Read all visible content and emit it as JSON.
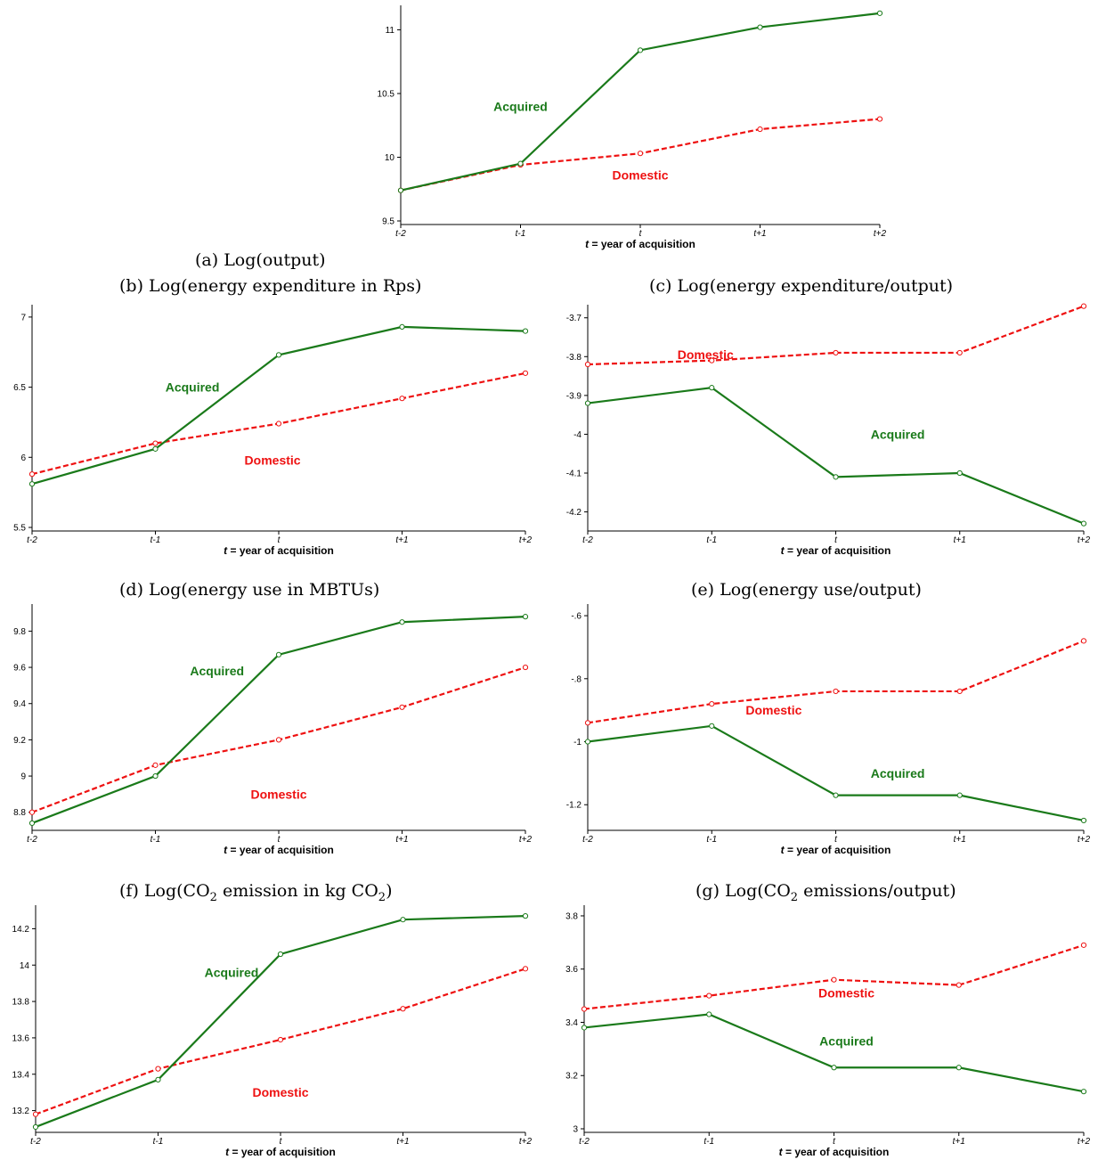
{
  "captions": {
    "a": "(a) Log(output)",
    "b": "(b) Log(energy expenditure in Rps)",
    "c": "(c) Log(energy expenditure/output)",
    "d": "(d) Log(energy use in MBTUs)",
    "e": "(e) Log(energy use/output)",
    "f_prefix": "(f) Log(CO",
    "f_mid": " emission in kg CO",
    "f_suffix": ")",
    "g_prefix": "(g) Log(CO",
    "g_suffix": " emissions/output)",
    "subscript": "2"
  },
  "colors": {
    "acquired": "#1a7a1a",
    "domestic": "#ee1111"
  },
  "chart_data": [
    {
      "id": "a",
      "type": "line",
      "categories": [
        "t-2",
        "t-1",
        "t",
        "t+1",
        "t+2"
      ],
      "xlabel_italic": "t",
      "xlabel_rest": " = year of acquisition",
      "yticks": [
        "9.5",
        "10",
        "10.5",
        "11"
      ],
      "ylim": [
        9.5,
        11.15
      ],
      "series": [
        {
          "name": "Acquired",
          "values": [
            9.74,
            9.95,
            10.84,
            11.02,
            11.13
          ],
          "style": "solid",
          "label_at": [
            1.0,
            10.4
          ]
        },
        {
          "name": "Domestic",
          "values": [
            9.74,
            9.94,
            10.03,
            10.22,
            10.3
          ],
          "style": "dashed",
          "label_at": [
            2.0,
            9.86
          ]
        }
      ]
    },
    {
      "id": "b",
      "type": "line",
      "categories": [
        "t-2",
        "t-1",
        "t",
        "t+1",
        "t+2"
      ],
      "xlabel_italic": "t",
      "xlabel_rest": " = year of acquisition",
      "yticks": [
        "5.5",
        "6",
        "6.5",
        "7"
      ],
      "ylim": [
        5.5,
        7.05
      ],
      "series": [
        {
          "name": "Acquired",
          "values": [
            5.81,
            6.06,
            6.73,
            6.93,
            6.9
          ],
          "style": "solid",
          "label_at": [
            1.3,
            6.5
          ]
        },
        {
          "name": "Domestic",
          "values": [
            5.88,
            6.1,
            6.24,
            6.42,
            6.6
          ],
          "style": "dashed",
          "label_at": [
            1.95,
            5.98
          ]
        }
      ]
    },
    {
      "id": "c",
      "type": "line",
      "categories": [
        "t-2",
        "t-1",
        "t",
        "t+1",
        "t+2"
      ],
      "xlabel_italic": "t",
      "xlabel_rest": " = year of acquisition",
      "yticks": [
        "-4.2",
        "-4.1",
        "-4",
        "-3.9",
        "-3.8",
        "-3.7"
      ],
      "ylim": [
        -4.24,
        -3.68
      ],
      "series": [
        {
          "name": "Acquired",
          "values": [
            -3.92,
            -3.88,
            -4.11,
            -4.1,
            -4.23
          ],
          "style": "solid",
          "label_at": [
            2.5,
            -4.0
          ]
        },
        {
          "name": "Domestic",
          "values": [
            -3.82,
            -3.81,
            -3.79,
            -3.79,
            -3.67
          ],
          "style": "dashed",
          "label_at": [
            0.95,
            -3.795
          ]
        }
      ]
    },
    {
      "id": "d",
      "type": "line",
      "categories": [
        "t-2",
        "t-1",
        "t",
        "t+1",
        "t+2"
      ],
      "xlabel_italic": "t",
      "xlabel_rest": " = year of acquisition",
      "yticks": [
        "8.8",
        "9",
        "9.2",
        "9.4",
        "9.6",
        "9.8"
      ],
      "ylim": [
        8.72,
        9.92
      ],
      "series": [
        {
          "name": "Acquired",
          "values": [
            8.74,
            9.0,
            9.67,
            9.85,
            9.88
          ],
          "style": "solid",
          "label_at": [
            1.5,
            9.58
          ]
        },
        {
          "name": "Domestic",
          "values": [
            8.8,
            9.06,
            9.2,
            9.38,
            9.6
          ],
          "style": "dashed",
          "label_at": [
            2.0,
            8.9
          ]
        }
      ]
    },
    {
      "id": "e",
      "type": "line",
      "categories": [
        "t-2",
        "t-1",
        "t",
        "t+1",
        "t+2"
      ],
      "xlabel_italic": "t",
      "xlabel_rest": " = year of acquisition",
      "yticks": [
        "-1.2",
        "-1",
        "-.8",
        "-.6"
      ],
      "ylim": [
        -1.27,
        -0.58
      ],
      "series": [
        {
          "name": "Acquired",
          "values": [
            -1.0,
            -0.95,
            -1.17,
            -1.17,
            -1.25
          ],
          "style": "solid",
          "label_at": [
            2.5,
            -1.1
          ]
        },
        {
          "name": "Domestic",
          "values": [
            -0.94,
            -0.88,
            -0.84,
            -0.84,
            -0.68
          ],
          "style": "dashed",
          "label_at": [
            1.5,
            -0.9
          ]
        }
      ]
    },
    {
      "id": "f",
      "type": "line",
      "categories": [
        "t-2",
        "t-1",
        "t",
        "t+1",
        "t+2"
      ],
      "xlabel_italic": "t",
      "xlabel_rest": " = year of acquisition",
      "yticks": [
        "13.2",
        "13.4",
        "13.6",
        "13.8",
        "14",
        "14.2"
      ],
      "ylim": [
        13.1,
        14.3
      ],
      "series": [
        {
          "name": "Acquired",
          "values": [
            13.11,
            13.37,
            14.06,
            14.25,
            14.27
          ],
          "style": "solid",
          "label_at": [
            1.6,
            13.96
          ]
        },
        {
          "name": "Domestic",
          "values": [
            13.18,
            13.43,
            13.59,
            13.76,
            13.98
          ],
          "style": "dashed",
          "label_at": [
            2.0,
            13.3
          ]
        }
      ]
    },
    {
      "id": "g",
      "type": "line",
      "categories": [
        "t-2",
        "t-1",
        "t",
        "t+1",
        "t+2"
      ],
      "xlabel_italic": "t",
      "xlabel_rest": " = year of acquisition",
      "yticks": [
        "3",
        "3.2",
        "3.4",
        "3.6",
        "3.8"
      ],
      "ylim": [
        3.0,
        3.82
      ],
      "series": [
        {
          "name": "Acquired",
          "values": [
            3.38,
            3.43,
            3.23,
            3.23,
            3.14
          ],
          "style": "solid",
          "label_at": [
            2.1,
            3.33
          ]
        },
        {
          "name": "Domestic",
          "values": [
            3.45,
            3.5,
            3.56,
            3.54,
            3.69
          ],
          "style": "dashed",
          "label_at": [
            2.1,
            3.51
          ]
        }
      ]
    }
  ]
}
